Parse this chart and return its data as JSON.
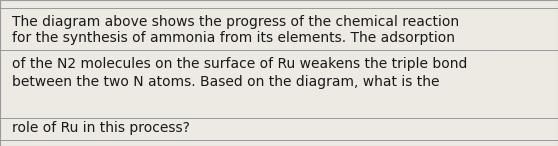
{
  "background_color": "#ede9e3",
  "border_color": "#999999",
  "text_lines": [
    "The diagram above shows the progress of the chemical reaction",
    "for the synthesis of ammonia from its elements. The adsorption",
    "of the N2 molecules on the surface of Ru weakens the triple bond",
    "between the two N atoms. Based on the diagram, what is the",
    "role of Ru in this process?"
  ],
  "font_size": 10.0,
  "text_color": "#1a1a1a",
  "font_family": "DejaVu Sans",
  "line_color": "#999999",
  "fig_width": 5.58,
  "fig_height": 1.46,
  "dpi": 100
}
